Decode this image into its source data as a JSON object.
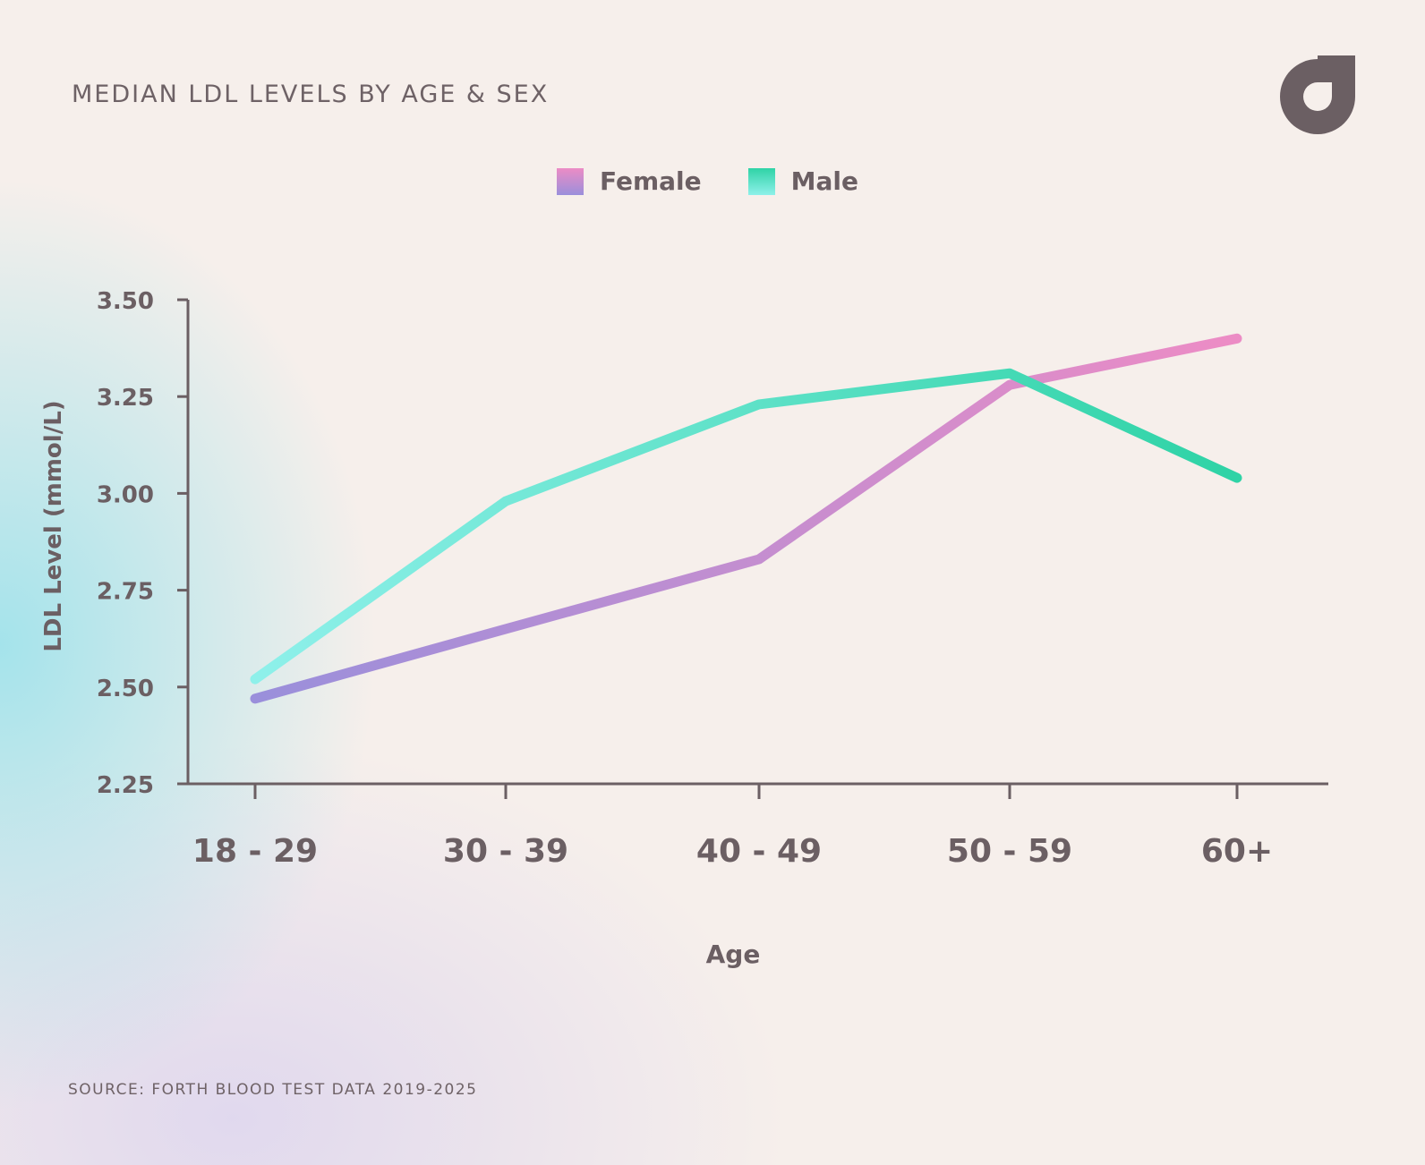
{
  "title": "MEDIAN LDL LEVELS BY AGE & SEX",
  "source": "SOURCE: FORTH BLOOD TEST DATA 2019-2025",
  "logo_icon": "forth-logo-icon",
  "legend": [
    {
      "name": "Female",
      "color_top": "#ec8cc5",
      "color_bottom": "#9a8fdb"
    },
    {
      "name": "Male",
      "color_top": "#2fd3a6",
      "color_bottom": "#8ef0ea"
    }
  ],
  "chart_data": {
    "type": "line",
    "title": "MEDIAN LDL LEVELS BY AGE & SEX",
    "xlabel": "Age",
    "ylabel": "LDL Level (mmol/L)",
    "categories": [
      "18 - 29",
      "30 - 39",
      "40 - 49",
      "50 - 59",
      "60+"
    ],
    "ylim": [
      2.25,
      3.5
    ],
    "yticks": [
      "2.25",
      "2.50",
      "2.75",
      "3.00",
      "3.25",
      "3.50"
    ],
    "grid": false,
    "legend_position": "top-center",
    "series": [
      {
        "name": "Female",
        "values": [
          2.47,
          2.65,
          2.83,
          3.28,
          3.4
        ],
        "color_start": "#9a8fdb",
        "color_end": "#ec8cc5"
      },
      {
        "name": "Male",
        "values": [
          2.52,
          2.98,
          3.23,
          3.31,
          3.04
        ],
        "color_start": "#8ef0ea",
        "color_end": "#2fd3a6"
      }
    ]
  }
}
